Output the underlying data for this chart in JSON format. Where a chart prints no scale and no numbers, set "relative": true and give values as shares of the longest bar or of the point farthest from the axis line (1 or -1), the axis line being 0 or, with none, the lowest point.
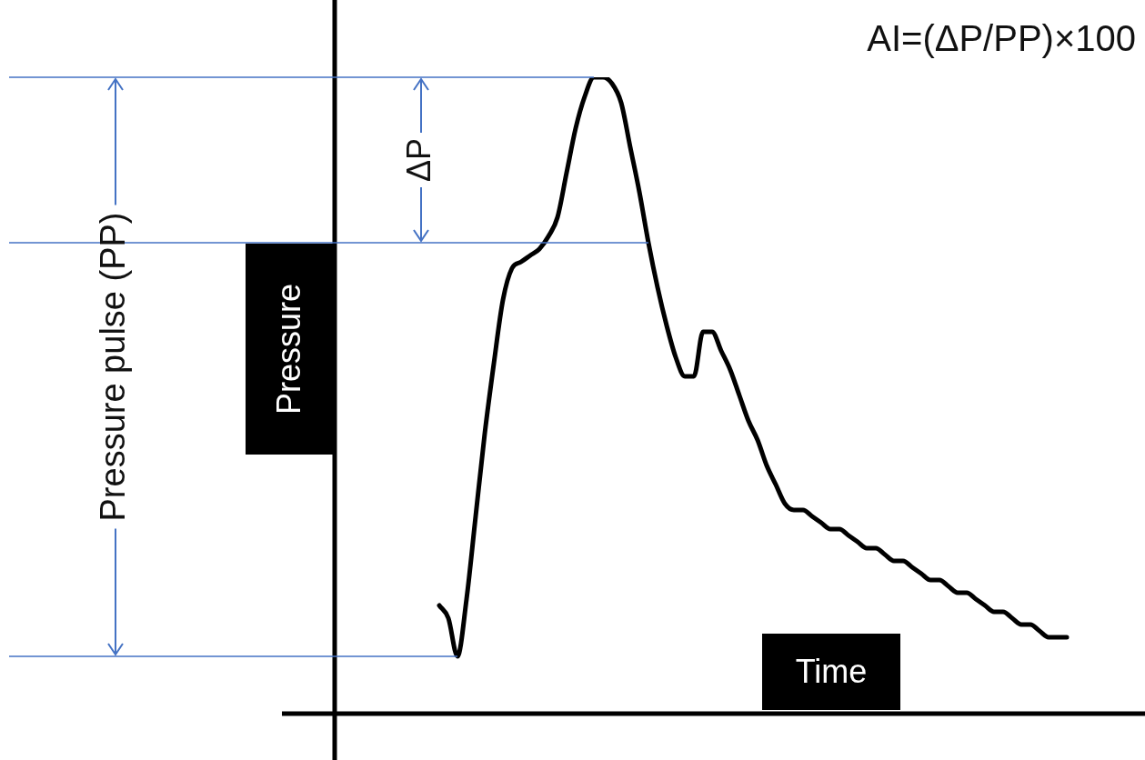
{
  "chart_data": {
    "type": "line",
    "relative": true,
    "xlabel": "Time",
    "ylabel": "Pressure",
    "annotations": [
      "AI=(ΔP/PP)×100",
      "Pressure pulse (PP)",
      "ΔP"
    ],
    "categories": [
      null,
      null,
      null,
      null,
      null,
      null,
      null,
      null,
      null,
      null,
      null,
      null,
      null,
      null,
      null,
      null,
      null,
      null,
      null,
      null,
      null,
      null,
      null,
      null,
      null,
      null,
      null,
      null,
      null,
      null,
      null,
      null,
      null,
      null,
      null,
      null,
      null,
      null,
      null,
      null,
      null,
      null,
      null,
      null,
      null,
      null,
      null,
      null,
      null,
      null,
      null,
      null,
      null,
      null,
      null,
      null,
      null,
      null,
      null,
      null,
      null,
      null,
      null,
      null,
      null,
      null,
      null,
      null,
      null,
      null,
      null,
      null,
      null,
      null,
      null,
      null,
      null,
      null,
      null,
      null,
      null,
      null,
      null,
      null,
      null,
      null,
      null,
      null,
      null
    ],
    "series": [
      {
        "color": "#000000",
        "values": [
          null,
          null,
          null,
          null,
          null,
          null,
          null,
          null,
          null,
          null,
          null,
          null,
          0.17,
          0.15,
          0.09,
          0.18,
          0.31,
          0.44,
          0.55,
          0.65,
          0.7,
          0.71,
          0.72,
          0.73,
          0.75,
          0.78,
          0.85,
          0.92,
          0.97,
          1.0,
          1,
          0.99,
          0.96,
          0.89,
          0.82,
          0.74,
          0.67,
          0.61,
          0.56,
          0.53,
          0.53,
          0.6,
          0.6,
          0.57,
          0.54,
          0.5,
          0.46,
          0.43,
          0.39,
          0.36,
          0.33,
          0.32,
          0.32,
          0.31,
          0.3,
          0.29,
          0.29,
          0.28,
          0.27,
          0.26,
          0.26,
          0.25,
          0.24,
          0.24,
          0.23,
          0.22,
          0.21,
          0.21,
          0.2,
          0.19,
          0.19,
          0.18,
          0.17,
          0.16,
          0.16,
          0.15,
          0.14,
          0.14,
          0.13,
          0.12,
          0.12,
          0.12,
          null,
          null,
          null,
          null,
          null,
          null,
          null
        ]
      }
    ],
    "ref_lines": [
      {
        "axis": "y",
        "value": 1,
        "color": "#4472c4"
      },
      {
        "axis": "y",
        "value": 0.74,
        "color": "#4472c4"
      },
      {
        "axis": "y",
        "value": 0.09,
        "color": "#4472c4"
      }
    ],
    "marker": "none",
    "line_style": "solid"
  }
}
